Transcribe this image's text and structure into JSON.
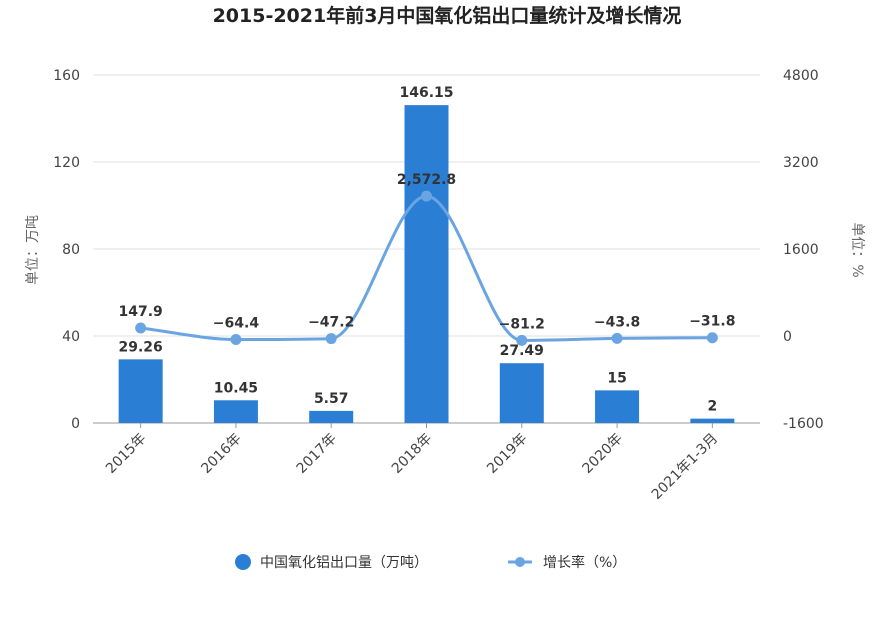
{
  "chart_data": {
    "type": "bar",
    "title": "2015-2021年前3月中国氧化铝出口量统计及增长情况",
    "categories": [
      "2015年",
      "2016年",
      "2017年",
      "2018年",
      "2019年",
      "2020年",
      "2021年1-3月"
    ],
    "y_left": {
      "label": "单位：万吨",
      "ylim": [
        0,
        160
      ],
      "ticks": [
        0,
        40,
        80,
        120,
        160
      ]
    },
    "y_right": {
      "label": "单位：%",
      "ylim": [
        -1600,
        4800
      ],
      "ticks": [
        -1600,
        0,
        1600,
        3200,
        4800
      ]
    },
    "series": [
      {
        "name": "中国氧化铝出口量（万吨）",
        "type": "bar",
        "axis": "left",
        "color": "#2a7fd4",
        "values": [
          29.26,
          10.45,
          5.57,
          146.15,
          27.49,
          15,
          2
        ],
        "labels": [
          "29.26",
          "10.45",
          "5.57",
          "146.15",
          "27.49",
          "15",
          "2"
        ]
      },
      {
        "name": "增长率（%）",
        "type": "line",
        "axis": "right",
        "color": "#6aa5e2",
        "smooth": true,
        "values": [
          147.9,
          -64.4,
          -47.2,
          2572.8,
          -81.2,
          -43.8,
          -31.8
        ],
        "labels": [
          "147.9",
          "−64.4",
          "−47.2",
          "2,572.8",
          "−81.2",
          "−43.8",
          "−31.8"
        ]
      }
    ],
    "grid": true,
    "legend": "bottom"
  }
}
